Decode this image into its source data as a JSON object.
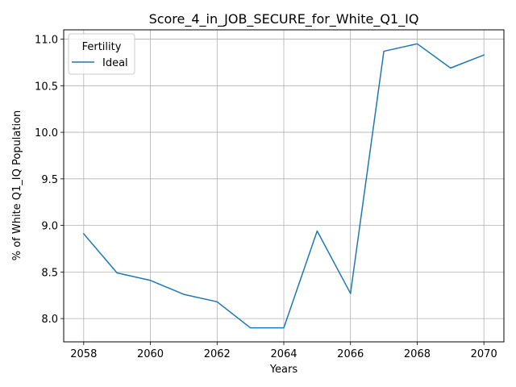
{
  "chart_data": {
    "type": "line",
    "title": "Score_4_in_JOB_SECURE_for_White_Q1_IQ",
    "xlabel": "Years",
    "ylabel": "% of White Q1_IQ Population",
    "x": [
      2058,
      2059,
      2060,
      2061,
      2062,
      2063,
      2064,
      2065,
      2066,
      2067,
      2068,
      2069,
      2070
    ],
    "series": [
      {
        "name": "Ideal",
        "color": "#1f77b4",
        "values": [
          8.91,
          8.49,
          8.41,
          8.26,
          8.18,
          7.9,
          7.9,
          8.94,
          8.27,
          10.87,
          10.95,
          10.69,
          10.83
        ]
      }
    ],
    "xlim": [
      2057.4,
      2070.6
    ],
    "ylim": [
      7.75,
      11.1
    ],
    "xticks": [
      "2058",
      "2060",
      "2062",
      "2064",
      "2066",
      "2068",
      "2070"
    ],
    "yticks": [
      "8.0",
      "8.5",
      "9.0",
      "9.5",
      "10.0",
      "10.5",
      "11.0"
    ],
    "grid": true,
    "legend": {
      "title": "Fertility",
      "position": "top-left"
    }
  }
}
